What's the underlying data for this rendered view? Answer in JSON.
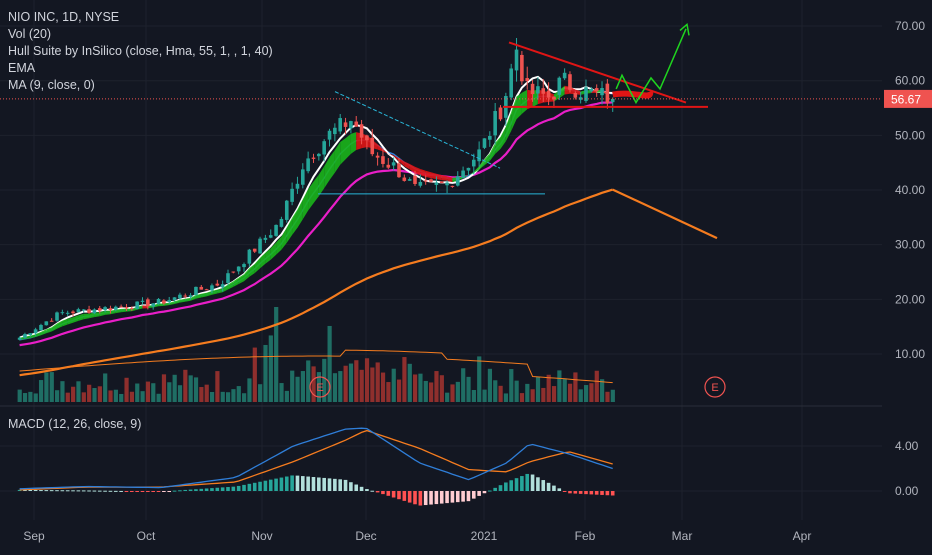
{
  "header": {
    "symbol_line": "NIO INC, 1D, NYSE",
    "indicators": [
      "Vol (20)",
      "Hull Suite by InSilico (close, Hma, 55, 1, , 1, 40)",
      "EMA",
      "MA (9, close, 0)"
    ],
    "macd_label": "MACD (12, 26, close, 9)"
  },
  "colors": {
    "background": "#131722",
    "up": "#26a69a",
    "down": "#ef5350",
    "ma_white": "#ffffff",
    "ema_blue": "#2f7ed8",
    "ema_magenta": "#e91ec8",
    "ema_orange": "#f57c1f",
    "hull_green": "#1bb51b",
    "hull_red": "#e01515",
    "macd_line": "#2f7ed8",
    "signal_line": "#f57c1f",
    "price_tag": "#ef5350",
    "annotation_red": "#e01515",
    "annotation_cyan": "#29b6d8",
    "projection_green": "#1fd41f"
  },
  "chart_data": [
    {
      "type": "candlestick",
      "title": "NIO INC, 1D, NYSE",
      "price_axis_ticks": [
        "70.00",
        "60.00",
        "50.00",
        "40.00",
        "30.00",
        "20.00",
        "10.00"
      ],
      "time_axis_labels": [
        "Sep",
        "Oct",
        "Nov",
        "Dec",
        "2021",
        "Feb",
        "Mar",
        "Apr"
      ],
      "ylim": [
        0,
        73
      ],
      "last_price": "56.67",
      "price_anchors": [
        {
          "date": "Aug 28",
          "price": 13
        },
        {
          "date": "Sep 8",
          "price": 17.5
        },
        {
          "date": "Sep 22",
          "price": 18.5
        },
        {
          "date": "Oct 5",
          "price": 19.5
        },
        {
          "date": "Oct 21",
          "price": 23
        },
        {
          "date": "Oct 29",
          "price": 28.5
        },
        {
          "date": "Nov 6",
          "price": 34
        },
        {
          "date": "Nov 13",
          "price": 45
        },
        {
          "date": "Nov 20",
          "price": 50
        },
        {
          "date": "Nov 27",
          "price": 53
        },
        {
          "date": "Dec 2",
          "price": 47
        },
        {
          "date": "Dec 9",
          "price": 44
        },
        {
          "date": "Dec 14",
          "price": 40
        },
        {
          "date": "Dec 22",
          "price": 41
        },
        {
          "date": "Dec 31",
          "price": 47
        },
        {
          "date": "Jan 7",
          "price": 56
        },
        {
          "date": "Jan 11",
          "price": 66
        },
        {
          "date": "Jan 14",
          "price": 58
        },
        {
          "date": "Jan 21",
          "price": 57
        },
        {
          "date": "Jan 25",
          "price": 60
        },
        {
          "date": "Feb 1",
          "price": 58
        },
        {
          "date": "Feb 9",
          "price": 56.67
        }
      ],
      "volume_avg_ma": "Vol (20)",
      "earnings_markers": [
        "E",
        "E"
      ]
    },
    {
      "type": "line",
      "title": "MACD (12, 26, close, 9)",
      "axis_ticks": [
        "4.00",
        "0.00"
      ],
      "series": [
        {
          "values_anchor": [
            {
              "date": "Aug 28",
              "macd": 0.2,
              "signal": 0.1
            },
            {
              "date": "Sep 15",
              "macd": 0.4,
              "signal": 0.35
            },
            {
              "date": "Oct 5",
              "macd": 0.3,
              "signal": 0.35
            },
            {
              "date": "Oct 25",
              "macd": 1.2,
              "signal": 0.8
            },
            {
              "date": "Nov 10",
              "macd": 4.0,
              "signal": 2.6
            },
            {
              "date": "Nov 25",
              "macd": 5.5,
              "signal": 4.5
            },
            {
              "date": "Dec 1",
              "macd": 5.6,
              "signal": 5.4
            },
            {
              "date": "Dec 15",
              "macd": 2.5,
              "signal": 3.8
            },
            {
              "date": "Dec 28",
              "macd": 1.0,
              "signal": 1.9
            },
            {
              "date": "Jan 8",
              "macd": 2.5,
              "signal": 1.7
            },
            {
              "date": "Jan 15",
              "macd": 4.2,
              "signal": 2.6
            },
            {
              "date": "Jan 27",
              "macd": 3.3,
              "signal": 3.5
            },
            {
              "date": "Feb 9",
              "macd": 2.0,
              "signal": 2.4
            }
          ]
        }
      ]
    }
  ]
}
